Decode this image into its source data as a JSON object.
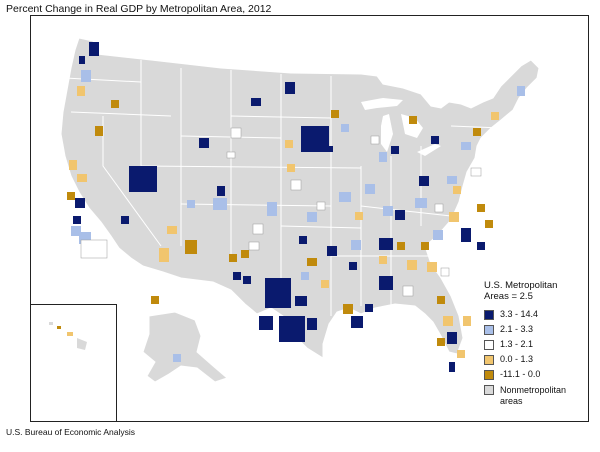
{
  "title": "Percent Change in Real GDP by Metropolitan Area, 2012",
  "source": "U.S. Bureau of Economic Analysis",
  "legend": {
    "title_line1": "U.S. Metropolitan",
    "title_line2": "Areas = 2.5",
    "items": [
      {
        "label": "3.3 - 14.4",
        "color": "#0a1a6e"
      },
      {
        "label": "2.1 - 3.3",
        "color": "#a9bfe8"
      },
      {
        "label": "1.3 - 2.1",
        "color": "#ffffff"
      },
      {
        "label": "0.0 - 1.3",
        "color": "#f1c56e"
      },
      {
        "label": "-11.1 - 0.0",
        "color": "#c08a0c"
      },
      {
        "label_line1": "Nonmetropolitan",
        "label_line2": "areas",
        "color": "#d9d9d9"
      }
    ]
  },
  "colors": {
    "nonmetro": "#d9d9d9",
    "state_border": "#ffffff",
    "frame": "#222222"
  }
}
